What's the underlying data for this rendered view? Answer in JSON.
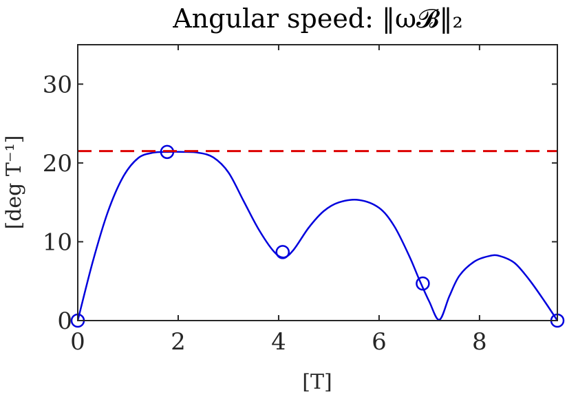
{
  "chart_data": {
    "type": "line",
    "title": "Angular speed: ‖ω𝓑‖₂",
    "xlabel": "[T]",
    "ylabel": "[deg T⁻¹]",
    "xlim": [
      0,
      9.55
    ],
    "ylim": [
      0,
      35
    ],
    "x_ticks": [
      "0",
      "2",
      "4",
      "6",
      "8"
    ],
    "x_tick_values": [
      0,
      2,
      4,
      6,
      8
    ],
    "y_ticks": [
      "0",
      "10",
      "20",
      "30"
    ],
    "y_tick_values": [
      0,
      10,
      20,
      30
    ],
    "grid": false,
    "series": [
      {
        "style": "solid-line",
        "color": "#0000dd",
        "x": [
          0,
          0.3,
          0.6,
          0.9,
          1.2,
          1.5,
          1.8,
          2.1,
          2.4,
          2.7,
          3.0,
          3.3,
          3.6,
          3.9,
          4.1,
          4.3,
          4.6,
          4.9,
          5.2,
          5.6,
          6.0,
          6.3,
          6.6,
          6.8,
          7.0,
          7.2,
          7.4,
          7.6,
          7.9,
          8.2,
          8.4,
          8.7,
          9.0,
          9.3,
          9.55
        ],
        "y": [
          0,
          7.5,
          13.8,
          18.2,
          20.6,
          21.3,
          21.4,
          21.4,
          21.3,
          20.7,
          18.8,
          15.2,
          11.6,
          8.8,
          8.0,
          9.0,
          11.8,
          13.9,
          15.0,
          15.3,
          14.3,
          12.0,
          8.2,
          5.2,
          2.4,
          0.1,
          3.1,
          5.7,
          7.5,
          8.2,
          8.2,
          7.3,
          5.1,
          2.4,
          0
        ]
      },
      {
        "style": "circle-markers",
        "color": "#0000dd",
        "x": [
          0,
          1.78,
          4.08,
          6.87,
          9.55
        ],
        "y": [
          0,
          21.4,
          8.7,
          4.7,
          0
        ]
      },
      {
        "style": "dashed-line",
        "color": "#dd0000",
        "y": 21.5
      }
    ]
  }
}
